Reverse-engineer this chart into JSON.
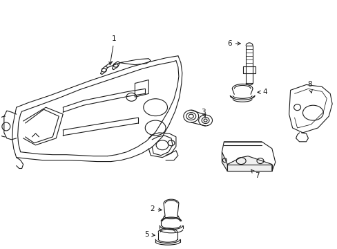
{
  "background_color": "#ffffff",
  "line_color": "#1a1a1a",
  "line_width": 0.8,
  "fig_width": 4.89,
  "fig_height": 3.6,
  "dpi": 100
}
